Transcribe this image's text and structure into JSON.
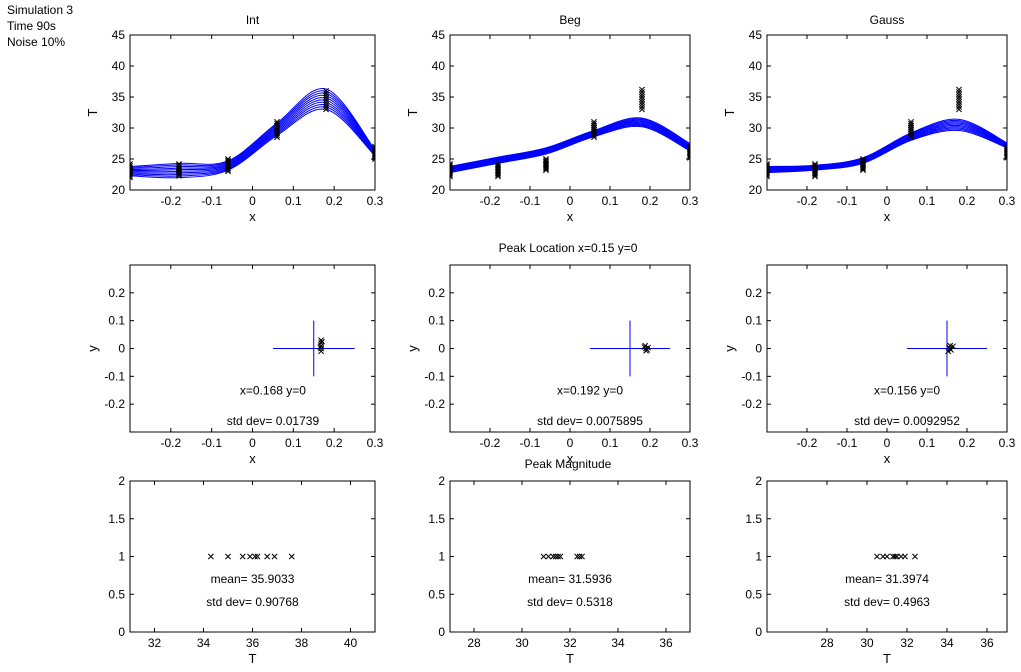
{
  "header": {
    "simulation": "Simulation 3",
    "time": "Time 90s",
    "noise": "Noise 10%"
  },
  "row_titles": {
    "peak_location": "Peak Location x=0.15 y=0",
    "peak_magnitude": "Peak Magnitude"
  },
  "chart_data": [
    {
      "type": "line",
      "title": "Int",
      "xlabel": "x",
      "ylabel": "T",
      "xlim": [
        -0.3,
        0.3
      ],
      "ylim": [
        20,
        45
      ],
      "xticks": [
        "-0.2",
        "-0.1",
        "0",
        "0.1",
        "0.2",
        "0.3"
      ],
      "yticks": [
        "20",
        "25",
        "30",
        "35",
        "40",
        "45"
      ],
      "markers": {
        "x": [
          -0.3,
          -0.18,
          -0.06,
          0.06,
          0.18,
          0.3
        ],
        "y": [
          [
            22,
            24.2
          ],
          [
            22.3,
            24.2
          ],
          [
            23,
            25
          ],
          [
            28.5,
            31
          ],
          [
            33,
            36
          ],
          [
            25,
            27
          ]
        ]
      },
      "curves": {
        "xs": [
          -0.3,
          -0.18,
          -0.06,
          0.06,
          0.18,
          0.3
        ],
        "min": [
          22.3,
          22.0,
          23.2,
          28.8,
          33.0,
          25.5
        ],
        "max": [
          23.8,
          24.3,
          24.7,
          30.8,
          36.3,
          26.5
        ],
        "count": 10
      }
    },
    {
      "type": "line",
      "title": "Beg",
      "xlabel": "x",
      "ylabel": "T",
      "xlim": [
        -0.3,
        0.3
      ],
      "ylim": [
        20,
        45
      ],
      "xticks": [
        "-0.2",
        "-0.1",
        "0",
        "0.1",
        "0.2",
        "0.3"
      ],
      "yticks": [
        "20",
        "25",
        "30",
        "35",
        "40",
        "45"
      ],
      "markers": {
        "x": [
          -0.3,
          -0.18,
          -0.06,
          0.06,
          0.18,
          0.3
        ],
        "y": [
          [
            22.2,
            24.2
          ],
          [
            22.2,
            24.2
          ],
          [
            23.2,
            25
          ],
          [
            28.5,
            31
          ],
          [
            33,
            36.2
          ],
          [
            25.2,
            27
          ]
        ]
      },
      "curves": {
        "xs": [
          -0.3,
          -0.18,
          -0.06,
          0.06,
          0.18,
          0.3
        ],
        "min": [
          22.8,
          24.3,
          25.8,
          28.6,
          30.2,
          26.3
        ],
        "max": [
          23.8,
          25.3,
          26.8,
          29.6,
          31.6,
          27.5
        ],
        "count": 10
      }
    },
    {
      "type": "line",
      "title": "Gauss",
      "xlabel": "x",
      "ylabel": "T",
      "xlim": [
        -0.3,
        0.3
      ],
      "ylim": [
        20,
        45
      ],
      "xticks": [
        "-0.2",
        "-0.1",
        "0",
        "0.1",
        "0.2",
        "0.3"
      ],
      "yticks": [
        "20",
        "25",
        "30",
        "35",
        "40",
        "45"
      ],
      "markers": {
        "x": [
          -0.3,
          -0.18,
          -0.06,
          0.06,
          0.18,
          0.3
        ],
        "y": [
          [
            22.2,
            24.2
          ],
          [
            22.2,
            24.2
          ],
          [
            23.2,
            25
          ],
          [
            28.5,
            31
          ],
          [
            33,
            36.2
          ],
          [
            25.2,
            27
          ]
        ]
      },
      "curves": {
        "xs": [
          -0.3,
          -0.18,
          -0.06,
          0.06,
          0.18,
          0.3
        ],
        "min": [
          22.8,
          23.2,
          24.3,
          28.0,
          29.6,
          26.8
        ],
        "max": [
          23.8,
          24.0,
          25.2,
          29.2,
          31.4,
          27.6
        ],
        "count": 10
      }
    },
    {
      "type": "scatter",
      "xlabel": "x",
      "ylabel": "y",
      "xlim": [
        -0.3,
        0.3
      ],
      "ylim": [
        -0.3,
        0.3
      ],
      "xticks": [
        "-0.2",
        "-0.1",
        "0",
        "0.1",
        "0.2",
        "0.3"
      ],
      "yticks": [
        "-0.2",
        "-0.1",
        "0",
        "0.1",
        "0.2"
      ],
      "cross": {
        "cx": 0.15,
        "cy": 0,
        "half_width": 0.1,
        "half_height": 0.1
      },
      "points": [
        [
          0.168,
          -0.01
        ],
        [
          0.168,
          0.0
        ],
        [
          0.168,
          0.01
        ],
        [
          0.168,
          0.02
        ],
        [
          0.168,
          0.03
        ],
        [
          0.17,
          0.025
        ],
        [
          0.166,
          0.005
        ]
      ],
      "annotation_mean": "x=0.168 y=0",
      "annotation_std": "std dev= 0.01739"
    },
    {
      "type": "scatter",
      "xlabel": "x",
      "ylabel": "y",
      "xlim": [
        -0.3,
        0.3
      ],
      "ylim": [
        -0.3,
        0.3
      ],
      "xticks": [
        "-0.2",
        "-0.1",
        "0",
        "0.1",
        "0.2",
        "0.3"
      ],
      "yticks": [
        "-0.2",
        "-0.1",
        "0",
        "0.1",
        "0.2"
      ],
      "cross": {
        "cx": 0.15,
        "cy": 0,
        "half_width": 0.1,
        "half_height": 0.1
      },
      "points": [
        [
          0.186,
          0.005
        ],
        [
          0.19,
          0.0
        ],
        [
          0.193,
          -0.005
        ],
        [
          0.188,
          0.01
        ],
        [
          0.195,
          0.003
        ],
        [
          0.19,
          -0.008
        ]
      ],
      "annotation_mean": "x=0.192 y=0",
      "annotation_std": "std dev= 0.0075895"
    },
    {
      "type": "scatter",
      "xlabel": "x",
      "ylabel": "y",
      "xlim": [
        -0.3,
        0.3
      ],
      "ylim": [
        -0.3,
        0.3
      ],
      "xticks": [
        "-0.2",
        "-0.1",
        "0",
        "0.1",
        "0.2",
        "0.3"
      ],
      "yticks": [
        "-0.2",
        "-0.1",
        "0",
        "0.1",
        "0.2"
      ],
      "cross": {
        "cx": 0.15,
        "cy": 0,
        "half_width": 0.1,
        "half_height": 0.1
      },
      "points": [
        [
          0.155,
          0.005
        ],
        [
          0.158,
          0.01
        ],
        [
          0.16,
          -0.005
        ],
        [
          0.165,
          0.008
        ],
        [
          0.153,
          -0.01
        ],
        [
          0.157,
          0.0
        ]
      ],
      "annotation_mean": "x=0.156 y=0",
      "annotation_std": "std dev= 0.0092952"
    },
    {
      "type": "scatter",
      "xlabel": "T",
      "xlim": [
        31,
        41
      ],
      "ylim": [
        0,
        2
      ],
      "xticks": [
        "32",
        "34",
        "36",
        "38",
        "40"
      ],
      "yticks": [
        "0",
        "0.5",
        "1",
        "1.5",
        "2"
      ],
      "points_x": [
        34.3,
        35.0,
        35.6,
        35.9,
        36.1,
        36.2,
        36.6,
        36.9,
        37.6
      ],
      "annotation_mean": "mean= 35.9033",
      "annotation_std": "std dev= 0.90768"
    },
    {
      "type": "scatter",
      "xlabel": "T",
      "xlim": [
        27,
        37
      ],
      "ylim": [
        0,
        2
      ],
      "xticks": [
        "28",
        "30",
        "32",
        "34",
        "36"
      ],
      "yticks": [
        "0",
        "0.5",
        "1",
        "1.5",
        "2"
      ],
      "points_x": [
        30.9,
        31.1,
        31.3,
        31.4,
        31.5,
        31.6,
        32.3,
        32.4,
        32.5
      ],
      "annotation_mean": "mean= 31.5936",
      "annotation_std": "std dev= 0.5318"
    },
    {
      "type": "scatter",
      "xlabel": "T",
      "xlim": [
        25,
        37
      ],
      "ylim": [
        0,
        2
      ],
      "xticks": [
        "28",
        "30",
        "32",
        "34",
        "36"
      ],
      "yticks": [
        "0",
        "0.5",
        "1",
        "1.5",
        "2"
      ],
      "points_x": [
        30.5,
        30.8,
        31.0,
        31.3,
        31.4,
        31.5,
        31.7,
        31.9,
        32.4
      ],
      "annotation_mean": "mean= 31.3974",
      "annotation_std": "std dev= 0.4963"
    }
  ]
}
